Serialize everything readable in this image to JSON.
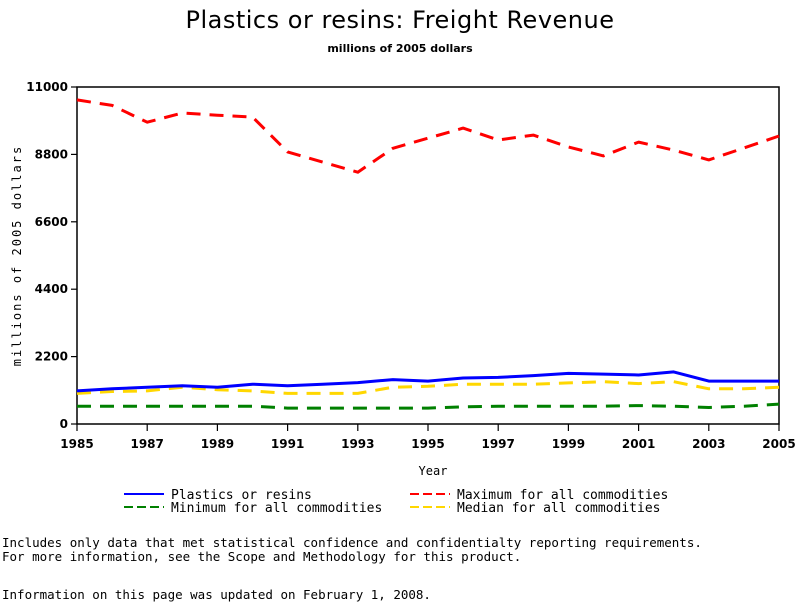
{
  "page": {
    "footnotes": [
      "Includes only data that met statistical confidence and confidentialty reporting requirements.",
      "For more information, see the Scope and Methodology for this product."
    ],
    "updated_note": "Information on this page was updated on February 1, 2008."
  },
  "chart_data": {
    "type": "line",
    "title": "Plastics or resins: Freight Revenue",
    "subtitle": "millions of 2005 dollars",
    "xlabel": "Year",
    "ylabel": "millions of 2005 dollars",
    "xlim": [
      1985,
      2005
    ],
    "ylim": [
      0,
      11000
    ],
    "x_ticks": [
      "1985",
      "1987",
      "1989",
      "1991",
      "1993",
      "1995",
      "1997",
      "1999",
      "2001",
      "2003",
      "2005"
    ],
    "y_ticks": [
      "0",
      "2200",
      "4400",
      "6600",
      "8800",
      "11000"
    ],
    "grid": false,
    "legend_position": "bottom",
    "x": [
      1985,
      1986,
      1987,
      1988,
      1989,
      1990,
      1991,
      1992,
      1993,
      1994,
      1995,
      1996,
      1997,
      1998,
      1999,
      2000,
      2001,
      2002,
      2003,
      2004,
      2005
    ],
    "series": [
      {
        "name": "Plastics or resins",
        "color": "#0000ff",
        "style": "solid",
        "values": [
          1080,
          1150,
          1200,
          1250,
          1200,
          1300,
          1250,
          1300,
          1350,
          1450,
          1400,
          1500,
          1520,
          1580,
          1650,
          1630,
          1600,
          1700,
          1400,
          1400,
          1400
        ]
      },
      {
        "name": "Maximum for all commodities",
        "color": "#ff0000",
        "style": "dashed",
        "values": [
          10580,
          10400,
          9850,
          10150,
          10080,
          10020,
          8880,
          8550,
          8220,
          9000,
          9330,
          9660,
          9270,
          9430,
          9040,
          8750,
          9200,
          8940,
          8620,
          9010,
          9400
        ]
      },
      {
        "name": "Minimum for all commodities",
        "color": "#008000",
        "style": "dashed",
        "values": [
          580,
          580,
          580,
          580,
          580,
          580,
          520,
          520,
          520,
          520,
          520,
          560,
          580,
          580,
          580,
          580,
          600,
          580,
          540,
          580,
          650
        ]
      },
      {
        "name": "Median for all commodities",
        "color": "#ffd700",
        "style": "dashed",
        "values": [
          1000,
          1060,
          1080,
          1200,
          1120,
          1080,
          1000,
          1000,
          1000,
          1200,
          1230,
          1300,
          1300,
          1300,
          1340,
          1380,
          1320,
          1380,
          1150,
          1150,
          1200
        ]
      }
    ],
    "legend": [
      {
        "label": "Plastics or resins",
        "color": "#0000ff",
        "style": "solid"
      },
      {
        "label": "Maximum for all commodities",
        "color": "#ff0000",
        "style": "dashed"
      },
      {
        "label": "Minimum for all commodities",
        "color": "#008000",
        "style": "dashed"
      },
      {
        "label": "Median for all commodities",
        "color": "#ffd700",
        "style": "dashed"
      }
    ]
  }
}
